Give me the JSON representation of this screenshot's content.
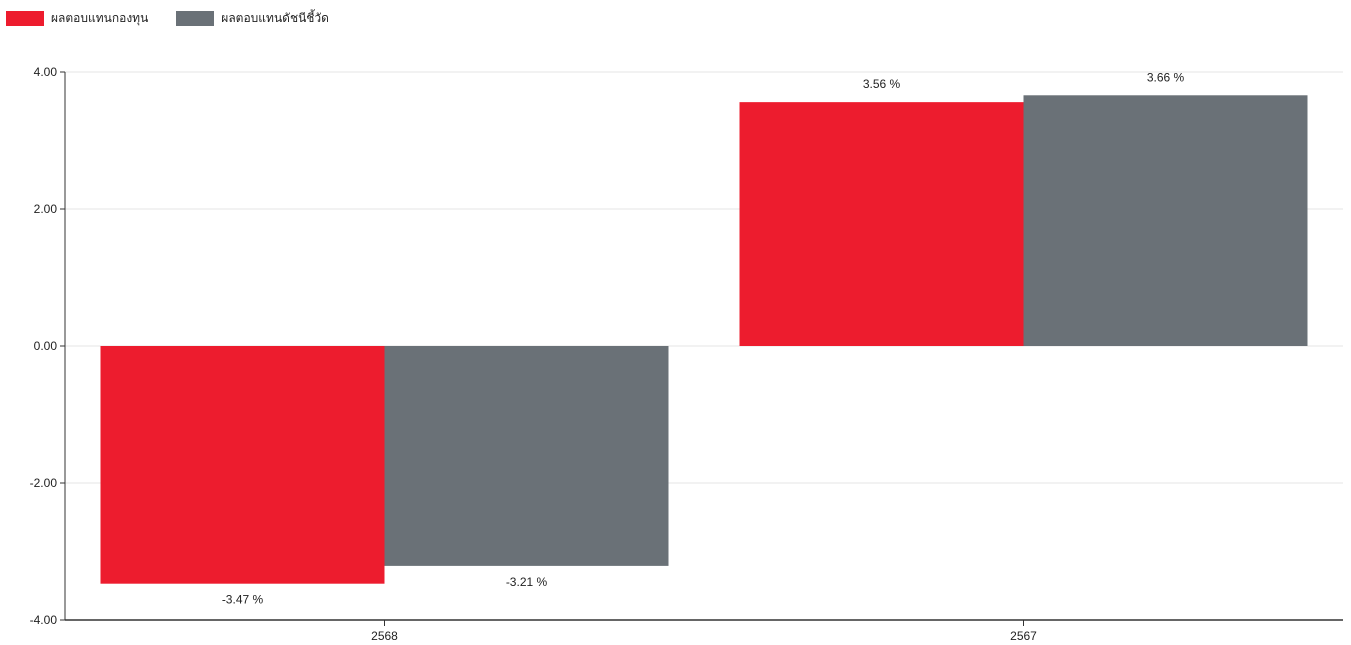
{
  "chart_data": {
    "type": "bar",
    "categories": [
      "2568",
      "2567"
    ],
    "series": [
      {
        "name": "ผลตอบแทนกองทุน",
        "values": [
          -3.47,
          3.56
        ],
        "color": "#ed1c2e"
      },
      {
        "name": "ผลตอบแทนดัชนีชี้วัด",
        "values": [
          -3.21,
          3.66
        ],
        "color": "#6a7177"
      }
    ],
    "data_labels": [
      [
        "-3.47 %",
        "3.56 %"
      ],
      [
        "-3.21 %",
        "3.66 %"
      ]
    ],
    "y_ticks": [
      "4.00",
      "2.00",
      "0.00",
      "-2.00",
      "-4.00"
    ],
    "ylim": [
      -4,
      4
    ],
    "title": "",
    "xlabel": "",
    "ylabel": "",
    "legend_position": "top-left",
    "grid": true
  }
}
